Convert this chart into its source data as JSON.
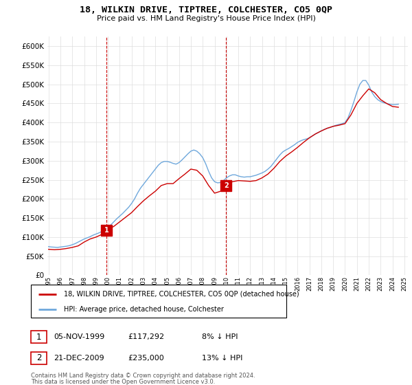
{
  "title": "18, WILKIN DRIVE, TIPTREE, COLCHESTER, CO5 0QP",
  "subtitle": "Price paid vs. HM Land Registry's House Price Index (HPI)",
  "legend_line1": "18, WILKIN DRIVE, TIPTREE, COLCHESTER, CO5 0QP (detached house)",
  "legend_line2": "HPI: Average price, detached house, Colchester",
  "footnote1": "Contains HM Land Registry data © Crown copyright and database right 2024.",
  "footnote2": "This data is licensed under the Open Government Licence v3.0.",
  "transaction1_label": "1",
  "transaction1_date": "05-NOV-1999",
  "transaction1_price": "£117,292",
  "transaction1_hpi": "8% ↓ HPI",
  "transaction2_label": "2",
  "transaction2_date": "21-DEC-2009",
  "transaction2_price": "£235,000",
  "transaction2_hpi": "13% ↓ HPI",
  "hpi_color": "#6fa8dc",
  "price_color": "#cc0000",
  "background_color": "#ffffff",
  "plot_bg_color": "#ffffff",
  "grid_color": "#dddddd",
  "ylim_min": 0,
  "ylim_max": 625000,
  "x_start_year": 1995,
  "x_end_year": 2025,
  "transaction1_year": 1999.87,
  "transaction1_value": 117292,
  "transaction2_year": 2009.98,
  "transaction2_value": 235000,
  "hpi_years": [
    1995.0,
    1995.25,
    1995.5,
    1995.75,
    1996.0,
    1996.25,
    1996.5,
    1996.75,
    1997.0,
    1997.25,
    1997.5,
    1997.75,
    1998.0,
    1998.25,
    1998.5,
    1998.75,
    1999.0,
    1999.25,
    1999.5,
    1999.75,
    2000.0,
    2000.25,
    2000.5,
    2000.75,
    2001.0,
    2001.25,
    2001.5,
    2001.75,
    2002.0,
    2002.25,
    2002.5,
    2002.75,
    2003.0,
    2003.25,
    2003.5,
    2003.75,
    2004.0,
    2004.25,
    2004.5,
    2004.75,
    2005.0,
    2005.25,
    2005.5,
    2005.75,
    2006.0,
    2006.25,
    2006.5,
    2006.75,
    2007.0,
    2007.25,
    2007.5,
    2007.75,
    2008.0,
    2008.25,
    2008.5,
    2008.75,
    2009.0,
    2009.25,
    2009.5,
    2009.75,
    2010.0,
    2010.25,
    2010.5,
    2010.75,
    2011.0,
    2011.25,
    2011.5,
    2011.75,
    2012.0,
    2012.25,
    2012.5,
    2012.75,
    2013.0,
    2013.25,
    2013.5,
    2013.75,
    2014.0,
    2014.25,
    2014.5,
    2014.75,
    2015.0,
    2015.25,
    2015.5,
    2015.75,
    2016.0,
    2016.25,
    2016.5,
    2016.75,
    2017.0,
    2017.25,
    2017.5,
    2017.75,
    2018.0,
    2018.25,
    2018.5,
    2018.75,
    2019.0,
    2019.25,
    2019.5,
    2019.75,
    2020.0,
    2020.25,
    2020.5,
    2020.75,
    2021.0,
    2021.25,
    2021.5,
    2021.75,
    2022.0,
    2022.25,
    2022.5,
    2022.75,
    2023.0,
    2023.25,
    2023.5,
    2023.75,
    2024.0,
    2024.25,
    2024.5
  ],
  "hpi_values": [
    75000,
    74000,
    73500,
    73000,
    74000,
    75000,
    76000,
    77500,
    80000,
    83000,
    87000,
    91000,
    95000,
    98000,
    101000,
    105000,
    108000,
    111000,
    115000,
    119000,
    125000,
    132000,
    140000,
    148000,
    155000,
    162000,
    170000,
    178000,
    188000,
    200000,
    215000,
    228000,
    238000,
    248000,
    258000,
    268000,
    278000,
    288000,
    295000,
    298000,
    298000,
    296000,
    293000,
    291000,
    295000,
    302000,
    310000,
    318000,
    325000,
    328000,
    325000,
    318000,
    308000,
    292000,
    272000,
    255000,
    245000,
    242000,
    243000,
    248000,
    255000,
    260000,
    263000,
    263000,
    260000,
    258000,
    257000,
    258000,
    258000,
    260000,
    262000,
    265000,
    268000,
    272000,
    278000,
    285000,
    295000,
    305000,
    315000,
    323000,
    328000,
    332000,
    337000,
    342000,
    348000,
    352000,
    355000,
    357000,
    360000,
    365000,
    370000,
    374000,
    378000,
    382000,
    385000,
    387000,
    390000,
    393000,
    395000,
    397000,
    400000,
    412000,
    432000,
    455000,
    480000,
    500000,
    510000,
    510000,
    498000,
    480000,
    468000,
    460000,
    455000,
    452000,
    450000,
    448000,
    447000,
    447000,
    448000
  ],
  "price_line_years": [
    1995.0,
    1995.5,
    1996.0,
    1996.5,
    1997.0,
    1997.5,
    1998.0,
    1998.5,
    1999.0,
    1999.5,
    1999.87,
    2000.0,
    2000.5,
    2001.0,
    2001.5,
    2002.0,
    2002.5,
    2003.0,
    2003.5,
    2004.0,
    2004.5,
    2005.0,
    2005.5,
    2006.0,
    2006.5,
    2007.0,
    2007.5,
    2008.0,
    2008.5,
    2009.0,
    2009.5,
    2009.98,
    2010.0,
    2010.5,
    2011.0,
    2011.5,
    2012.0,
    2012.5,
    2013.0,
    2013.5,
    2014.0,
    2014.5,
    2015.0,
    2015.5,
    2016.0,
    2016.5,
    2017.0,
    2017.5,
    2018.0,
    2018.5,
    2019.0,
    2019.5,
    2020.0,
    2020.5,
    2021.0,
    2021.5,
    2022.0,
    2022.5,
    2023.0,
    2023.5,
    2024.0,
    2024.5
  ],
  "price_line_values": [
    68000,
    67000,
    68000,
    70000,
    73000,
    77000,
    87000,
    95000,
    100000,
    107000,
    117292,
    120000,
    128000,
    140000,
    152000,
    164000,
    180000,
    195000,
    208000,
    220000,
    235000,
    240000,
    240000,
    253000,
    265000,
    278000,
    275000,
    260000,
    235000,
    215000,
    220000,
    235000,
    238000,
    245000,
    248000,
    247000,
    246000,
    248000,
    255000,
    265000,
    280000,
    298000,
    312000,
    323000,
    335000,
    348000,
    360000,
    370000,
    378000,
    385000,
    390000,
    393000,
    397000,
    420000,
    450000,
    470000,
    488000,
    478000,
    460000,
    450000,
    442000,
    440000
  ]
}
